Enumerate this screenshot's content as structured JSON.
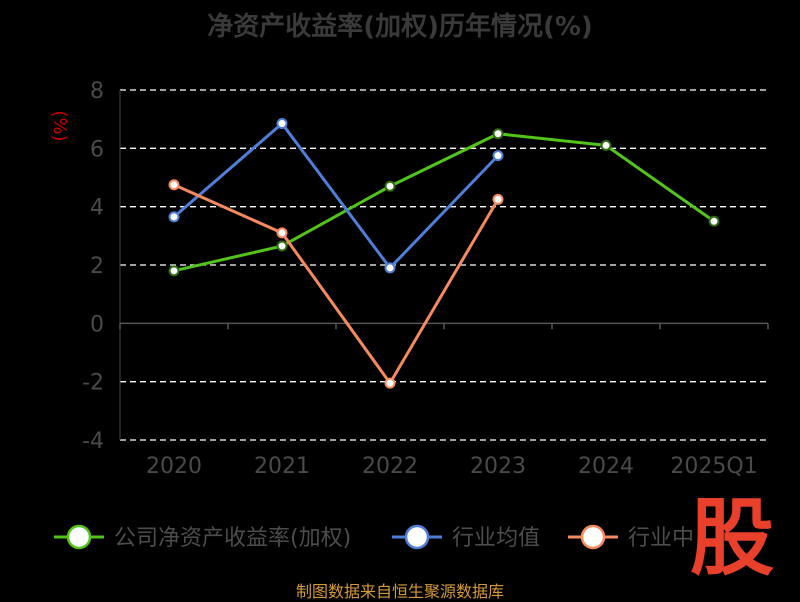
{
  "title": "净资产收益率(加权)历年情况(%)",
  "source": "制图数据来自恒生聚源数据库",
  "watermark_text": "股",
  "colors": {
    "background": "#000000",
    "company": "#52c41a",
    "industry_avg": "#4f7fd8",
    "industry_median": "#f58a5e",
    "axis_unit": "#cc0000",
    "source": "#d49a3a",
    "watermark": "#e8402b"
  },
  "chart_data": {
    "type": "line",
    "categories": [
      "2020",
      "2021",
      "2022",
      "2023",
      "2024",
      "2025Q1"
    ],
    "ylabel": "(%)",
    "xlabel": "",
    "ylim": [
      -4,
      8
    ],
    "yticks": [
      -4,
      -2,
      0,
      2,
      4,
      6,
      8
    ],
    "grid": true,
    "grid_style": "dashed",
    "legend_position": "bottom",
    "series": [
      {
        "name": "公司净资产收益率(加权)",
        "color": "#52c41a",
        "values": [
          1.8,
          2.65,
          4.7,
          6.5,
          6.1,
          3.5
        ]
      },
      {
        "name": "行业均值",
        "color": "#4f7fd8",
        "values": [
          3.65,
          6.85,
          1.9,
          5.75,
          null,
          null
        ]
      },
      {
        "name": "行业中",
        "color": "#f58a5e",
        "values": [
          4.75,
          3.1,
          -2.05,
          4.25,
          null,
          null
        ]
      }
    ]
  }
}
